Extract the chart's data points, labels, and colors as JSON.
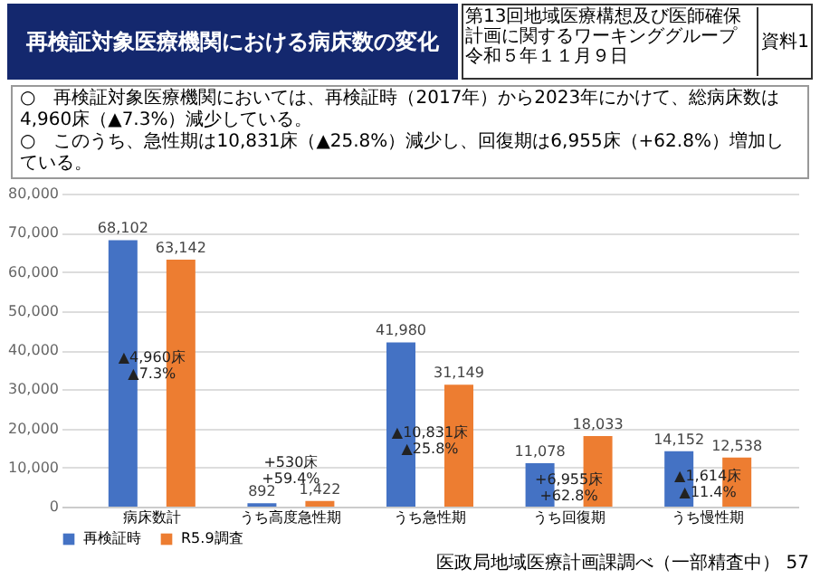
{
  "chart_data": {
    "type": "bar",
    "title": "再検証対象医療機関における病床数の変化",
    "subtitle": "○　再検証対象医療機関においては、再検証時（2017年）から2023年にかけて、総病床数は4,960床（▲7.3%）減少している。\n○　このうち、急性期は10,831床（▲25.8%）減少し、回復期は6,955床（+62.8%）増加している。",
    "categories": [
      "病床数計",
      "うち高度急性期",
      "うち急性期",
      "うち回復期",
      "うち慢性期"
    ],
    "series": [
      {
        "name": "再検証時",
        "color": "#4472c4",
        "values": [
          68102,
          892,
          41980,
          11078,
          14152
        ],
        "value_labels": [
          "68,102",
          "892",
          "41,980",
          "11,078",
          "14,152"
        ]
      },
      {
        "name": "R5.9調査",
        "color": "#ed7d31",
        "values": [
          63142,
          1422,
          31149,
          18033,
          12538
        ],
        "value_labels": [
          "63,142",
          "1,422",
          "31,149",
          "18,033",
          "12,538"
        ]
      }
    ],
    "ylim": [
      0,
      80000
    ],
    "yticks": [
      0,
      {
        "value": 10000,
        "label": "10,000"
      },
      {
        "value": 20000,
        "label": "20,000"
      },
      {
        "value": 30000,
        "label": "30,000"
      },
      {
        "value": 40000,
        "label": "40,000"
      },
      {
        "value": 50000,
        "label": "50,000"
      },
      {
        "value": 60000,
        "label": "60,000"
      },
      {
        "value": 70000,
        "label": "70,000"
      },
      {
        "value": 80000,
        "label": "80,000"
      }
    ],
    "grid": "y",
    "legend": "bottom",
    "annotations": [
      "▲4,960床\n▲7.3%",
      "+530床\n+59.4%",
      "▲10,831床\n▲25.8%",
      "+6,955床\n+62.8%",
      "▲1,614床\n▲11.4%",
      "第13回地域医療構想及び医師確保計画に関するワーキンググループ",
      "令和５年１１月９日",
      "資料1",
      "医政局地域医療計画課調べ（一部精査中）",
      "57"
    ]
  }
}
